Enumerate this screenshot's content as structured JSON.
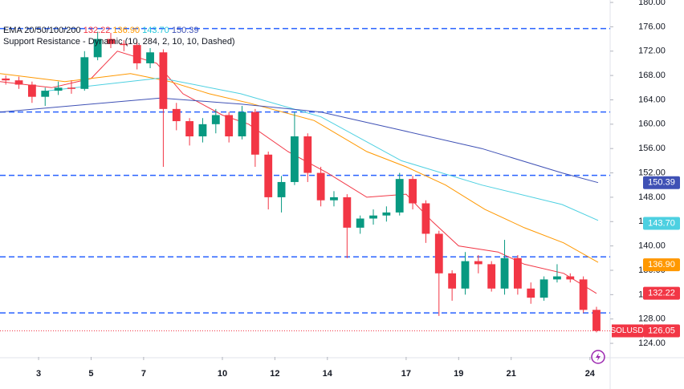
{
  "chart_data": {
    "type": "candlestick",
    "symbol": "SOLUSD",
    "indicator_1": "EMA 20/50/100/200",
    "indicator_2": "Support Resistance - Dynamic (10, 284, 2, 10, 10, Dashed)",
    "up_color": "#089981",
    "down_color": "#f23645",
    "x": [
      1.75,
      2.25,
      2.75,
      3.25,
      3.75,
      4.25,
      4.75,
      5.25,
      5.75,
      6.25,
      6.75,
      7.25,
      7.75,
      8.25,
      8.75,
      9.25,
      9.75,
      10.25,
      10.75,
      11.25,
      11.75,
      12.25,
      12.75,
      13.25,
      13.75,
      14.25,
      14.75,
      15.25,
      15.75,
      16.25,
      16.75,
      17.25,
      17.75,
      18.25,
      18.75,
      19.25,
      19.75,
      20.25,
      20.75,
      21.25,
      21.75,
      22.25,
      22.75,
      23.25,
      23.75,
      24.25
    ],
    "open": [
      167.5,
      167.2,
      166.5,
      164.5,
      165.5,
      166,
      165.8,
      171,
      174,
      173.2,
      173,
      170,
      171.8,
      162.5,
      160.5,
      158,
      160,
      161.5,
      158,
      162,
      155,
      148,
      150.5,
      158,
      152,
      147.5,
      148,
      143,
      144.5,
      145,
      145.5,
      151,
      147,
      142,
      135.5,
      133,
      137.5,
      137,
      133,
      138,
      133,
      131.5,
      134.5,
      135,
      134.5,
      129.5
    ],
    "high": [
      168,
      167.8,
      167,
      166,
      167,
      167.2,
      172,
      175.2,
      175,
      173.8,
      173.5,
      172.5,
      172.3,
      163.5,
      161,
      161,
      162.5,
      162,
      163,
      162.5,
      155.5,
      151.5,
      162,
      158.5,
      153,
      149,
      148.5,
      145,
      146,
      146.5,
      152,
      151.5,
      147.5,
      142.5,
      136,
      139,
      138.5,
      137.5,
      141,
      138.5,
      134,
      135,
      137,
      135.5,
      135,
      130
    ],
    "low": [
      166.5,
      165.8,
      163.5,
      163,
      164.8,
      165,
      165.5,
      170.5,
      172.5,
      172,
      169,
      169.2,
      153,
      159,
      156.5,
      157,
      158.5,
      157,
      157.5,
      153,
      146,
      145.5,
      150,
      150.5,
      146.5,
      146.5,
      138,
      142,
      143.5,
      144,
      145,
      146,
      140.5,
      128.5,
      131,
      132,
      135.5,
      132.5,
      132,
      132,
      130.5,
      131,
      134,
      134,
      129,
      125.8
    ],
    "close": [
      167.2,
      166.5,
      164.5,
      165.5,
      166,
      165.8,
      171,
      174,
      173.2,
      173,
      170,
      171.8,
      162.5,
      160.5,
      158,
      160,
      161.5,
      158,
      162,
      155,
      148,
      150.5,
      158,
      152,
      147.5,
      148,
      143,
      144.5,
      145,
      145.5,
      151,
      147,
      142,
      135.5,
      133,
      137.5,
      137,
      133,
      138,
      133,
      131.5,
      134.5,
      135,
      134.5,
      129.5,
      126.05
    ],
    "series": [
      {
        "name": "EMA 20",
        "color": "#f23645",
        "x": [
          1.53,
          3.5,
          5,
          6,
          7.5,
          8.5,
          10,
          11,
          12.5,
          14,
          15.5,
          17,
          18,
          19,
          20.5,
          21.5,
          23,
          24.25
        ],
        "values": [
          167,
          166,
          167.5,
          172,
          170,
          165,
          161.5,
          160,
          155.5,
          152,
          148,
          148.5,
          144,
          140,
          139,
          137,
          135.5,
          132.2
        ],
        "last": 132.22
      },
      {
        "name": "EMA 50",
        "color": "#ff9800",
        "x": [
          1.53,
          4,
          6.5,
          8,
          9.5,
          11,
          13.5,
          15.5,
          17,
          18.5,
          20,
          21.5,
          23,
          24.31
        ],
        "values": [
          168.3,
          167,
          168.3,
          167,
          165,
          163.5,
          160.6,
          155.5,
          153,
          150,
          146,
          143,
          140.5,
          137.3
        ],
        "last": {
          "value": 136.9,
          "label": "136.90"
        }
      },
      {
        "name": "EMA 100",
        "color": "#4dd0e1",
        "x": [
          3.37,
          7.65,
          10.7,
          13.76,
          16.82,
          19.88,
          22.94,
          24.31
        ],
        "values": [
          165.5,
          167.6,
          165,
          161.2,
          154,
          150,
          146.8,
          144.2
        ],
        "last": {
          "value": 143.7,
          "label": "143.70"
        }
      },
      {
        "name": "EMA 200",
        "color": "#3f51b5",
        "x": [
          1.53,
          7.65,
          10.7,
          13.76,
          16.82,
          19.88,
          22.94,
          24.31
        ],
        "values": [
          162,
          164.3,
          163.3,
          162,
          159,
          156,
          152,
          150.4
        ],
        "last": 150.39
      }
    ],
    "support_levels": [
      175.7,
      162,
      151.6,
      138.2,
      129
    ],
    "support_color": "#2962ff",
    "last_price": 126.05,
    "xlim": [
      1.53,
      24.77
    ],
    "xticks": [
      3,
      5,
      7,
      10,
      12,
      14,
      17,
      19,
      21,
      24
    ],
    "ylim": [
      121.77,
      180.4
    ],
    "yticks": [
      {
        "value": 124,
        "label": "124.00"
      },
      {
        "value": 128,
        "label": "128.00"
      },
      {
        "value": 132,
        "label": "132.00"
      },
      {
        "value": 136,
        "label": "136.00"
      },
      {
        "value": 140,
        "label": "140.00"
      },
      {
        "value": 144,
        "label": "144.00"
      },
      {
        "value": 148,
        "label": "148.00"
      },
      {
        "value": 152,
        "label": "152.00"
      },
      {
        "value": 156,
        "label": "156.00"
      },
      {
        "value": 160,
        "label": "160.00"
      },
      {
        "value": 164,
        "label": "164.00"
      },
      {
        "value": 168,
        "label": "168.00"
      },
      {
        "value": 172,
        "label": "172.00"
      },
      {
        "value": 176,
        "label": "176.00"
      },
      {
        "value": 180,
        "label": "180.00"
      }
    ]
  }
}
